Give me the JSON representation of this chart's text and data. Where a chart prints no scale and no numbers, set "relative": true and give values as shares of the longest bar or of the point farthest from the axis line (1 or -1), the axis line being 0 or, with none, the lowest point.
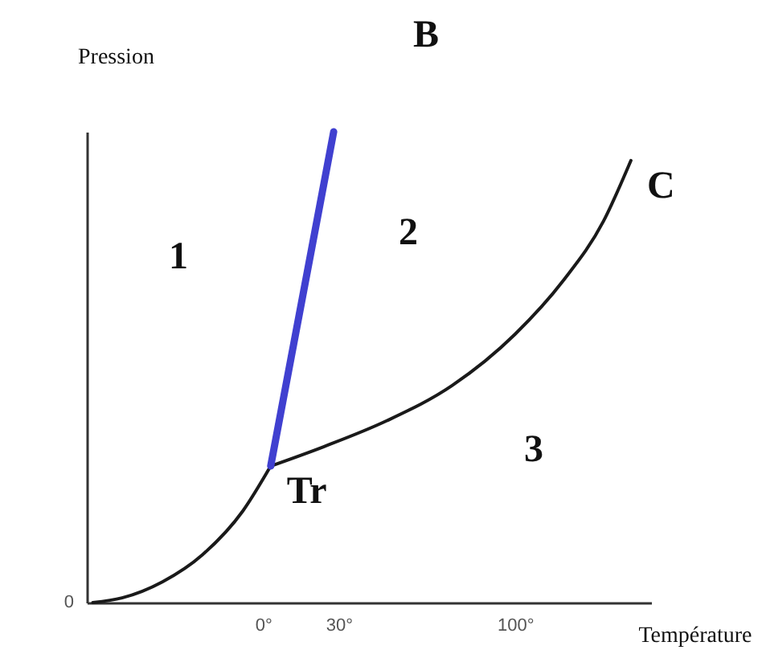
{
  "chart_data": {
    "type": "line",
    "relative": true,
    "xlabel": "Température",
    "ylabel": "Pression",
    "xlim": [
      -70,
      154
    ],
    "xticks": [
      {
        "value": 0,
        "label": "0°"
      },
      {
        "value": 30,
        "label": "30°"
      },
      {
        "value": 100,
        "label": "100°"
      }
    ],
    "series": [
      {
        "color": "#1a1a1a",
        "x": [
          -67.6,
          -56,
          -40,
          -24,
          -8,
          3
        ],
        "values": [
          0,
          0.01,
          0.044,
          0.102,
          0.195,
          0.29
        ]
      },
      {
        "color": "#1a1a1a",
        "x": [
          3,
          24,
          49,
          75,
          100,
          119,
          135,
          146
        ],
        "values": [
          0.29,
          0.331,
          0.386,
          0.461,
          0.57,
          0.683,
          0.809,
          0.939
        ]
      },
      {
        "color": "#4040d0",
        "x": [
          3,
          28
        ],
        "values": [
          0.29,
          1
        ]
      }
    ],
    "annotations": [
      "0",
      "1",
      "2",
      "3",
      "B",
      {
        "text": "C",
        "x": 146,
        "y": 0.939
      },
      {
        "text": "Tr",
        "x": 3,
        "y": 0.29
      }
    ],
    "marker": "none",
    "line_style": "solid"
  }
}
